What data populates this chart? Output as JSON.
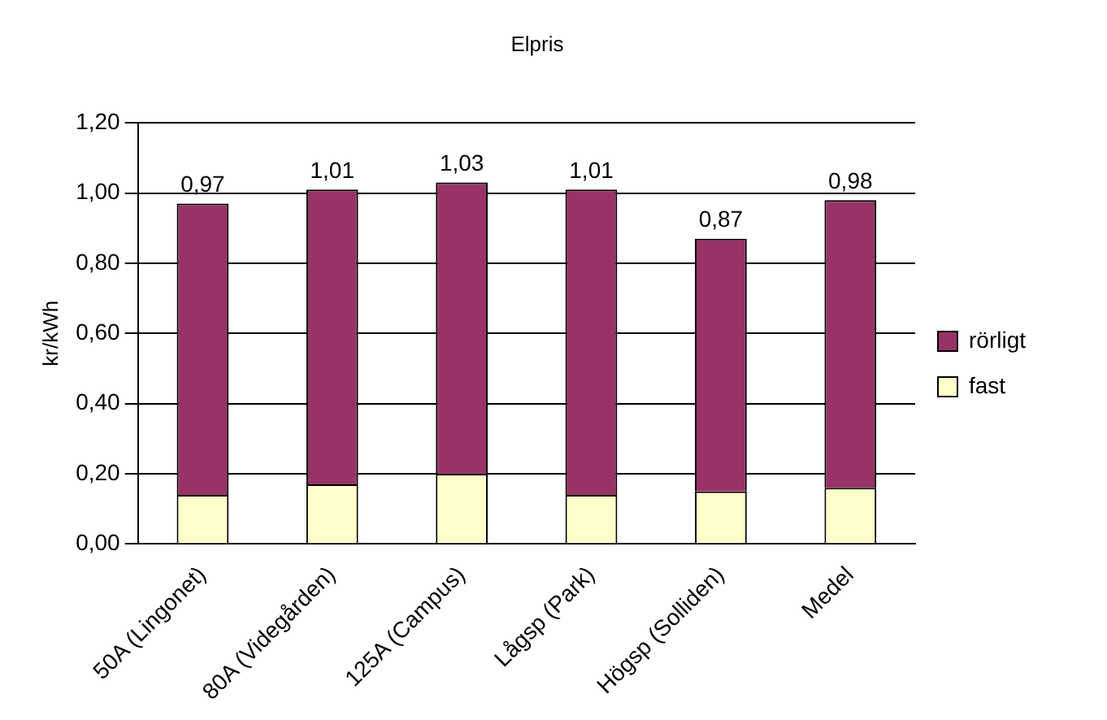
{
  "chart_data": {
    "type": "bar",
    "title": "Elpris",
    "ylabel": "kr/kWh",
    "stacked": true,
    "categories": [
      "50A (Lingonet)",
      "80A (Videgården)",
      "125A (Campus)",
      "Lågsp (Park)",
      "Högsp (Solliden)",
      "Medel"
    ],
    "series": [
      {
        "name": "fast",
        "color": "#ffffcc",
        "values": [
          0.14,
          0.17,
          0.2,
          0.14,
          0.15,
          0.16
        ]
      },
      {
        "name": "rörligt",
        "color": "#993366",
        "values": [
          0.83,
          0.84,
          0.83,
          0.87,
          0.72,
          0.82
        ]
      }
    ],
    "totals": [
      "0,97",
      "1,01",
      "1,03",
      "1,01",
      "0,87",
      "0,98"
    ],
    "ylim": [
      0,
      1.2
    ],
    "yticks": [
      {
        "value": 0,
        "label": "0,00"
      },
      {
        "value": 0.2,
        "label": "0,20"
      },
      {
        "value": 0.4,
        "label": "0,40"
      },
      {
        "value": 0.6,
        "label": "0,60"
      },
      {
        "value": 0.8,
        "label": "0,80"
      },
      {
        "value": 1.0,
        "label": "1,00"
      },
      {
        "value": 1.2,
        "label": "1,20"
      }
    ],
    "grid": "y",
    "legend": "right"
  }
}
